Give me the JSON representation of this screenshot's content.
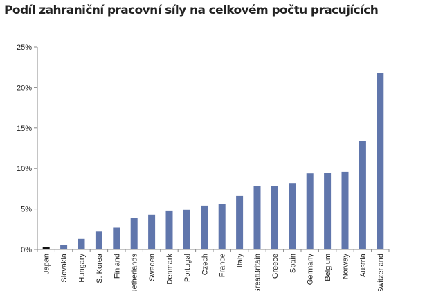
{
  "chart_data": {
    "type": "bar",
    "title": "Podíl zahraniční pracovní síly na celkovém počtu pracujících",
    "xlabel": "",
    "ylabel": "",
    "categories": [
      "Japan",
      "Slovakia",
      "Hungary",
      "S. Korea",
      "Finland",
      "Netherlands",
      "Sweden",
      "Denmark",
      "Portugal",
      "Czech",
      "France",
      "Italy",
      "GreatBritain",
      "Greece",
      "Spain",
      "Germany",
      "Belgium",
      "Norway",
      "Austria",
      "Switzerland"
    ],
    "values": [
      0.3,
      0.6,
      1.3,
      2.2,
      2.7,
      3.9,
      4.3,
      4.8,
      4.9,
      5.4,
      5.6,
      6.6,
      7.8,
      7.8,
      8.2,
      9.4,
      9.5,
      9.6,
      13.4,
      21.8
    ],
    "y_tick_labels": [
      "0%",
      "5%",
      "10%",
      "15%",
      "20%",
      "25%"
    ],
    "ylim": [
      0,
      25
    ],
    "grid": false,
    "legend": "none",
    "colors": {
      "bar": "#6076ac",
      "highlight_bar": "#111111",
      "axis": "#888888"
    },
    "highlight_index": 0
  }
}
